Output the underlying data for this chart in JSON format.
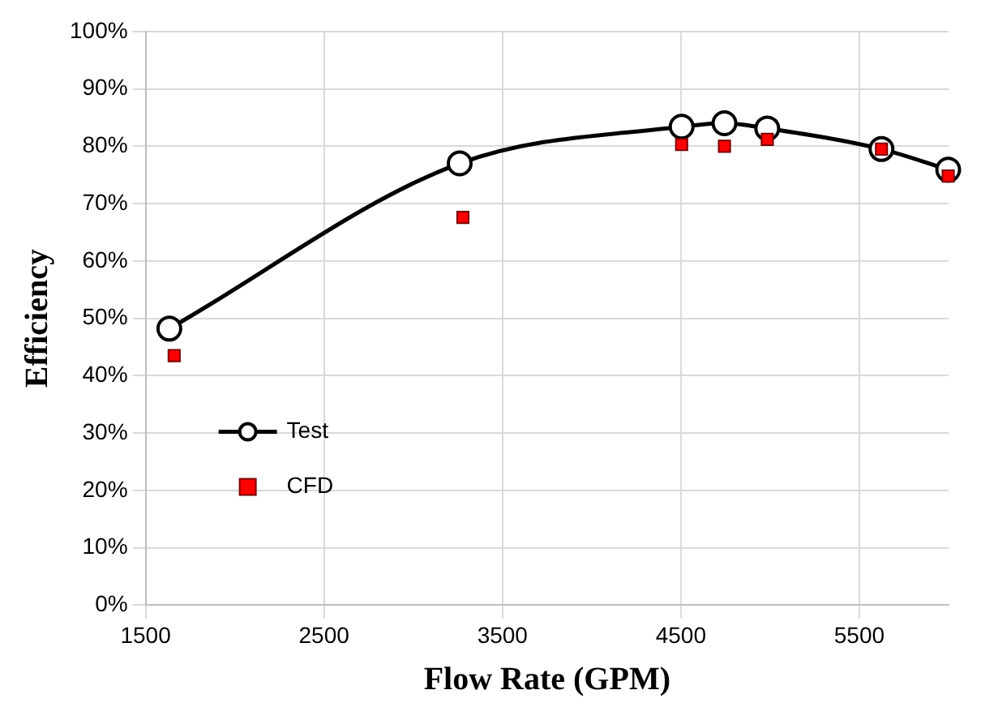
{
  "chart_data": {
    "type": "line",
    "xlabel": "Flow Rate (GPM)",
    "ylabel": "Efficiency",
    "xlim": [
      1500,
      6000
    ],
    "xticks": [
      1500,
      2500,
      3500,
      4500,
      5500
    ],
    "ylim": [
      0,
      100
    ],
    "yticks": [
      {
        "value": 0,
        "label": "0%"
      },
      {
        "value": 10,
        "label": "10%"
      },
      {
        "value": 20,
        "label": "20%"
      },
      {
        "value": 30,
        "label": "30%"
      },
      {
        "value": 40,
        "label": "40%"
      },
      {
        "value": 50,
        "label": "50%"
      },
      {
        "value": 60,
        "label": "60%"
      },
      {
        "value": 70,
        "label": "70%"
      },
      {
        "value": 80,
        "label": "80%"
      },
      {
        "value": 90,
        "label": "90%"
      },
      {
        "value": 100,
        "label": "100%"
      }
    ],
    "grid": true,
    "legend": "left",
    "line_style": "solid",
    "series": [
      {
        "name": "Test",
        "type": "line",
        "marker": "circle",
        "color": "#000000",
        "x": [
          1633,
          3260,
          4504,
          4744,
          4984,
          5624,
          5998
        ],
        "values": [
          48.2,
          77,
          83.4,
          84,
          83.1,
          79.5,
          75.9
        ]
      },
      {
        "name": "CFD",
        "type": "scatter",
        "marker": "square",
        "color": "#ff0000",
        "x": [
          1660,
          3278,
          4504,
          4744,
          4984,
          5624,
          5998
        ],
        "values": [
          43.5,
          67.6,
          80.3,
          80,
          81.2,
          79.5,
          74.8
        ]
      }
    ]
  }
}
